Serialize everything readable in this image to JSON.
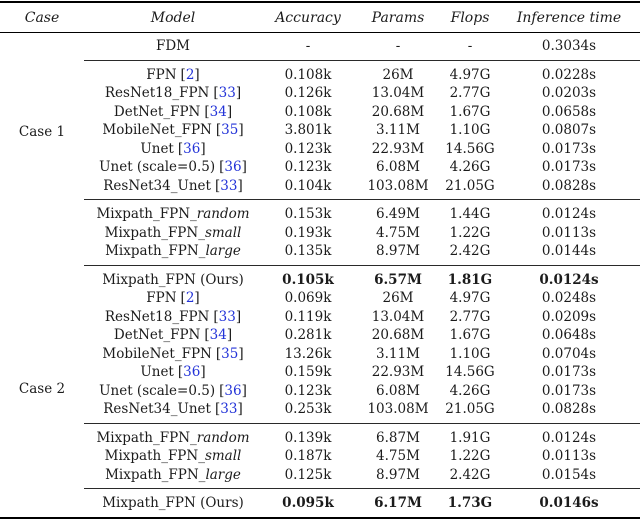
{
  "page": {
    "background": "#ffffff",
    "text_color": "#1b1b1b",
    "cite_color": "#2333d8"
  },
  "table": {
    "cite_open": "[",
    "cite_close": "]",
    "headers": {
      "case": "Case",
      "model": "Model",
      "accuracy": "Accuracy",
      "params": "Params",
      "flops": "Flops",
      "inference": "Inference time"
    },
    "groups": [
      {
        "id": "fdm",
        "case_cells": [
          {
            "at": 0,
            "label": "",
            "rowspan": 1
          }
        ],
        "rows": [
          {
            "name": "FDM",
            "accuracy": "-",
            "params": "-",
            "flops": "-",
            "time": "0.3034s",
            "bold": false
          }
        ]
      },
      {
        "id": "case1-baselines",
        "case_cells": [
          {
            "at": 0,
            "label": "Case 1",
            "rowspan": 7
          }
        ],
        "rows": [
          {
            "name": "FPN",
            "cite": "2",
            "accuracy": "0.108k",
            "params": "26M",
            "flops": "4.97G",
            "time": "0.0228s",
            "bold": false
          },
          {
            "name": "ResNet18_FPN",
            "cite": "33",
            "accuracy": "0.126k",
            "params": "13.04M",
            "flops": "2.77G",
            "time": "0.0203s",
            "bold": false
          },
          {
            "name": "DetNet_FPN",
            "cite": "34",
            "accuracy": "0.108k",
            "params": "20.68M",
            "flops": "1.67G",
            "time": "0.0658s",
            "bold": false
          },
          {
            "name": "MobileNet_FPN",
            "cite": "35",
            "accuracy": "3.801k",
            "params": "3.11M",
            "flops": "1.10G",
            "time": "0.0807s",
            "bold": false
          },
          {
            "name": "Unet",
            "cite": "36",
            "accuracy": "0.123k",
            "params": "22.93M",
            "flops": "14.56G",
            "time": "0.0173s",
            "bold": false
          },
          {
            "name": "Unet (scale=0.5)",
            "cite": "36",
            "accuracy": "0.123k",
            "params": "6.08M",
            "flops": "4.26G",
            "time": "0.0173s",
            "bold": false
          },
          {
            "name": "ResNet34_Unet",
            "cite": "33",
            "accuracy": "0.104k",
            "params": "103.08M",
            "flops": "21.05G",
            "time": "0.0828s",
            "bold": false
          }
        ]
      },
      {
        "id": "case1-mixpath",
        "case_cells": [
          {
            "at": 0,
            "label": "",
            "rowspan": 3
          }
        ],
        "rows": [
          {
            "name": "Mixpath_FPN_",
            "suffix": "random",
            "accuracy": "0.153k",
            "params": "6.49M",
            "flops": "1.44G",
            "time": "0.0124s",
            "bold": false
          },
          {
            "name": "Mixpath_FPN_",
            "suffix": "small",
            "accuracy": "0.193k",
            "params": "4.75M",
            "flops": "1.22G",
            "time": "0.0113s",
            "bold": false
          },
          {
            "name": "Mixpath_FPN_",
            "suffix": "large",
            "accuracy": "0.135k",
            "params": "8.97M",
            "flops": "2.42G",
            "time": "0.0144s",
            "bold": false
          }
        ]
      },
      {
        "id": "case2-block",
        "case_cells": [
          {
            "at": 0,
            "label": "",
            "rowspan": 1
          },
          {
            "at": 1,
            "label": "Case 2",
            "rowspan": 10
          }
        ],
        "rows": [
          {
            "name": "Mixpath_FPN (Ours)",
            "accuracy": "0.105k",
            "params": "6.57M",
            "flops": "1.81G",
            "time": "0.0124s",
            "bold": true
          },
          {
            "name": "FPN",
            "cite": "2",
            "accuracy": "0.069k",
            "params": "26M",
            "flops": "4.97G",
            "time": "0.0248s",
            "bold": false
          },
          {
            "name": "ResNet18_FPN",
            "cite": "33",
            "accuracy": "0.119k",
            "params": "13.04M",
            "flops": "2.77G",
            "time": "0.0209s",
            "bold": false
          },
          {
            "name": "DetNet_FPN",
            "cite": "34",
            "accuracy": "0.281k",
            "params": "20.68M",
            "flops": "1.67G",
            "time": "0.0648s",
            "bold": false
          },
          {
            "name": "MobileNet_FPN",
            "cite": "35",
            "accuracy": "13.26k",
            "params": "3.11M",
            "flops": "1.10G",
            "time": "0.0704s",
            "bold": false
          },
          {
            "name": "Unet",
            "cite": "36",
            "accuracy": "0.159k",
            "params": "22.93M",
            "flops": "14.56G",
            "time": "0.0173s",
            "bold": false
          },
          {
            "name": "Unet (scale=0.5)",
            "cite": "36",
            "accuracy": "0.123k",
            "params": "6.08M",
            "flops": "4.26G",
            "time": "0.0173s",
            "bold": false
          },
          {
            "name": "ResNet34_Unet",
            "cite": "33",
            "accuracy": "0.253k",
            "params": "103.08M",
            "flops": "21.05G",
            "time": "0.0828s",
            "bold": false
          }
        ]
      },
      {
        "id": "case2-mixpath",
        "case_cells": [],
        "rows": [
          {
            "name": "Mixpath_FPN_",
            "suffix": "random",
            "accuracy": "0.139k",
            "params": "6.87M",
            "flops": "1.91G",
            "time": "0.0124s",
            "bold": false
          },
          {
            "name": "Mixpath_FPN_",
            "suffix": "small",
            "accuracy": "0.187k",
            "params": "4.75M",
            "flops": "1.22G",
            "time": "0.0113s",
            "bold": false
          },
          {
            "name": "Mixpath_FPN_",
            "suffix": "large",
            "accuracy": "0.125k",
            "params": "8.97M",
            "flops": "2.42G",
            "time": "0.0154s",
            "bold": false
          }
        ]
      },
      {
        "id": "final-ours",
        "case_cells": [
          {
            "at": 0,
            "label": "",
            "rowspan": 1
          }
        ],
        "rows": [
          {
            "name": "Mixpath_FPN (Ours)",
            "accuracy": "0.095k",
            "params": "6.17M",
            "flops": "1.73G",
            "time": "0.0146s",
            "bold": true
          }
        ]
      }
    ]
  }
}
